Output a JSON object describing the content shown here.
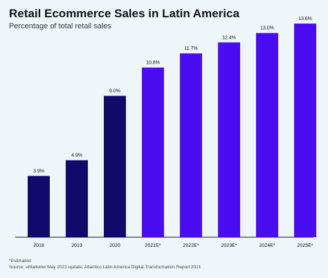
{
  "header": {
    "title": "Retail Ecommerce Sales in Latin America",
    "subtitle": "Percentage of total retail sales"
  },
  "footnote": {
    "line1": "*Estimated",
    "line2": "Source: eMarketer May 2021 update; Atlantico Latin America Digital Transformation Report 2021"
  },
  "colors": {
    "actual": "#120a6b",
    "estimate": "#4a0df2",
    "background": "#eef6fa",
    "text": "#111111"
  },
  "chart_data": {
    "type": "bar",
    "title": "Retail Ecommerce Sales in Latin America",
    "subtitle": "Percentage of total retail sales",
    "categories": [
      "2018",
      "2019",
      "2020",
      "2021E*",
      "2022E*",
      "2023E*",
      "2024E*",
      "2025E*"
    ],
    "values": [
      3.9,
      4.9,
      9.0,
      10.8,
      11.7,
      12.4,
      13.0,
      13.6
    ],
    "data_labels": [
      "3.9%",
      "4.9%",
      "9.0%",
      "10.8%",
      "11.7%",
      "12.4%",
      "13.0%",
      "13.6%"
    ],
    "estimated": [
      false,
      false,
      false,
      true,
      true,
      true,
      true,
      true
    ],
    "ylim": [
      0,
      14
    ],
    "grid": false,
    "legend": "none"
  }
}
